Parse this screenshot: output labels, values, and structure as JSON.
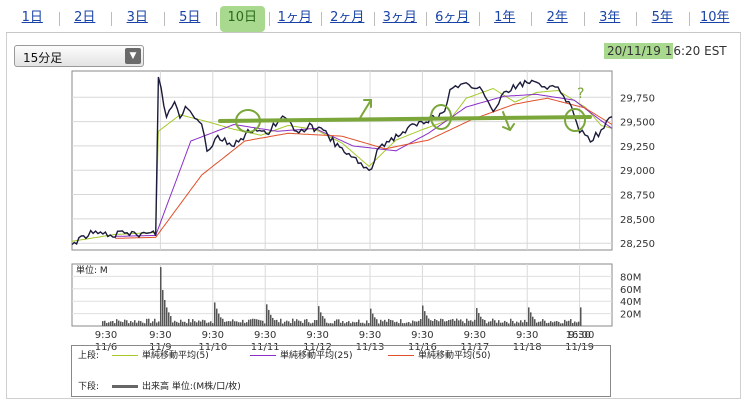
{
  "tabs": [
    {
      "label": "1日",
      "active": false
    },
    {
      "label": "2日",
      "active": false
    },
    {
      "label": "3日",
      "active": false
    },
    {
      "label": "5日",
      "active": false
    },
    {
      "label": "10日",
      "active": true
    },
    {
      "label": "1ヶ月",
      "active": false
    },
    {
      "label": "2ヶ月",
      "active": false
    },
    {
      "label": "3ヶ月",
      "active": false
    },
    {
      "label": "6ヶ月",
      "active": false
    },
    {
      "label": "1年",
      "active": false
    },
    {
      "label": "2年",
      "active": false
    },
    {
      "label": "3年",
      "active": false
    },
    {
      "label": "5年",
      "active": false
    },
    {
      "label": "10年",
      "active": false
    }
  ],
  "interval_select": {
    "value": "15分足"
  },
  "timestamp": {
    "highlighted": "20/11/19 1",
    "rest": "6:20 EST"
  },
  "colors": {
    "price": "#1a1a3a",
    "ma5": "#a6c92a",
    "ma25": "#8b2fc9",
    "ma50": "#e0502a",
    "volume": "#555555",
    "annotation": "#7aa63a",
    "tab_active_bg": "#a9d98e"
  },
  "chart_data": [
    {
      "type": "line",
      "title": "",
      "x": [
        "11/6",
        "11/9",
        "11/10",
        "11/11",
        "11/12",
        "11/13",
        "11/16",
        "11/17",
        "11/18",
        "11/19"
      ],
      "x_ticks": [
        {
          "time": "9:30",
          "date": "11/6"
        },
        {
          "time": "9:30",
          "date": "11/9"
        },
        {
          "time": "9:30",
          "date": "11/10"
        },
        {
          "time": "9:30",
          "date": "11/11"
        },
        {
          "time": "9:30",
          "date": "11/12"
        },
        {
          "time": "9:30",
          "date": "11/13"
        },
        {
          "time": "9:30",
          "date": "11/16"
        },
        {
          "time": "9:30",
          "date": "11/17"
        },
        {
          "time": "9:30",
          "date": "11/18"
        },
        {
          "time": "9:30",
          "date": "11/19"
        },
        {
          "time": "16:00",
          "date": ""
        }
      ],
      "y_ticks": [
        "29,750",
        "29,500",
        "29,250",
        "29,000",
        "28,750",
        "28,500",
        "28,250"
      ],
      "ylim": [
        28180,
        30020
      ],
      "series": [
        {
          "name": "単純移動平均(5)",
          "color": "#a6c92a",
          "anchors": [
            [
              0,
              28270
            ],
            [
              0.08,
              28340
            ],
            [
              0.155,
              28360
            ],
            [
              0.16,
              29400
            ],
            [
              0.2,
              29570
            ],
            [
              0.25,
              29500
            ],
            [
              0.3,
              29420
            ],
            [
              0.35,
              29360
            ],
            [
              0.4,
              29460
            ],
            [
              0.45,
              29420
            ],
            [
              0.5,
              29280
            ],
            [
              0.55,
              29040
            ],
            [
              0.6,
              29310
            ],
            [
              0.65,
              29420
            ],
            [
              0.7,
              29520
            ],
            [
              0.73,
              29740
            ],
            [
              0.78,
              29840
            ],
            [
              0.82,
              29700
            ],
            [
              0.86,
              29800
            ],
            [
              0.9,
              29820
            ],
            [
              0.95,
              29650
            ],
            [
              0.98,
              29460
            ],
            [
              1,
              29430
            ]
          ]
        },
        {
          "name": "単純移動平均(25)",
          "color": "#8b2fc9",
          "anchors": [
            [
              0.08,
              28320
            ],
            [
              0.155,
              28330
            ],
            [
              0.22,
              29300
            ],
            [
              0.3,
              29470
            ],
            [
              0.38,
              29400
            ],
            [
              0.45,
              29430
            ],
            [
              0.52,
              29250
            ],
            [
              0.6,
              29200
            ],
            [
              0.66,
              29380
            ],
            [
              0.73,
              29650
            ],
            [
              0.8,
              29760
            ],
            [
              0.86,
              29780
            ],
            [
              0.93,
              29720
            ],
            [
              0.97,
              29550
            ],
            [
              1,
              29430
            ]
          ]
        },
        {
          "name": "単純移動平均(50)",
          "color": "#e0502a",
          "anchors": [
            [
              0.08,
              28300
            ],
            [
              0.155,
              28310
            ],
            [
              0.24,
              28950
            ],
            [
              0.32,
              29300
            ],
            [
              0.4,
              29380
            ],
            [
              0.5,
              29350
            ],
            [
              0.58,
              29220
            ],
            [
              0.66,
              29310
            ],
            [
              0.74,
              29520
            ],
            [
              0.82,
              29680
            ],
            [
              0.88,
              29740
            ],
            [
              0.95,
              29640
            ],
            [
              1,
              29470
            ]
          ]
        },
        {
          "name": "price",
          "color": "#1a1a3a",
          "anchors": [
            [
              0,
              28240
            ],
            [
              0.03,
              28350
            ],
            [
              0.08,
              28340
            ],
            [
              0.155,
              28350
            ],
            [
              0.16,
              29970
            ],
            [
              0.175,
              29550
            ],
            [
              0.19,
              29700
            ],
            [
              0.2,
              29560
            ],
            [
              0.21,
              29650
            ],
            [
              0.24,
              29500
            ],
            [
              0.25,
              29200
            ],
            [
              0.27,
              29350
            ],
            [
              0.3,
              29250
            ],
            [
              0.33,
              29420
            ],
            [
              0.36,
              29380
            ],
            [
              0.39,
              29540
            ],
            [
              0.42,
              29400
            ],
            [
              0.44,
              29450
            ],
            [
              0.47,
              29380
            ],
            [
              0.5,
              29200
            ],
            [
              0.53,
              29100
            ],
            [
              0.55,
              28970
            ],
            [
              0.57,
              29250
            ],
            [
              0.6,
              29350
            ],
            [
              0.63,
              29450
            ],
            [
              0.66,
              29520
            ],
            [
              0.69,
              29580
            ],
            [
              0.7,
              29800
            ],
            [
              0.72,
              29900
            ],
            [
              0.74,
              29850
            ],
            [
              0.76,
              29820
            ],
            [
              0.78,
              29630
            ],
            [
              0.8,
              29800
            ],
            [
              0.83,
              29880
            ],
            [
              0.86,
              29920
            ],
            [
              0.88,
              29850
            ],
            [
              0.9,
              29820
            ],
            [
              0.92,
              29700
            ],
            [
              0.94,
              29420
            ],
            [
              0.96,
              29320
            ],
            [
              0.98,
              29400
            ],
            [
              1,
              29550
            ]
          ]
        }
      ]
    },
    {
      "type": "bar",
      "title": "",
      "unit_label": "単位: M",
      "y_ticks": [
        "80M",
        "60M",
        "40M",
        "20M"
      ],
      "ylim": [
        0,
        100
      ],
      "baseline_volume": 8,
      "day_spikes": [
        {
          "day_index": 1,
          "peak": 95,
          "decay": [
            95,
            58,
            42,
            30,
            22,
            16
          ]
        },
        {
          "day_index": 2,
          "peak": 38,
          "decay": [
            38,
            28,
            20,
            14
          ]
        },
        {
          "day_index": 3,
          "peak": 35,
          "decay": [
            35,
            26,
            18,
            13
          ]
        },
        {
          "day_index": 4,
          "peak": 32,
          "decay": [
            32,
            22,
            16,
            12
          ]
        },
        {
          "day_index": 5,
          "peak": 28,
          "decay": [
            28,
            20,
            14,
            11
          ]
        },
        {
          "day_index": 6,
          "peak": 33,
          "decay": [
            33,
            24,
            17,
            12
          ]
        },
        {
          "day_index": 7,
          "peak": 29,
          "decay": [
            29,
            21,
            15,
            11
          ]
        },
        {
          "day_index": 8,
          "peak": 30,
          "decay": [
            30,
            22,
            15,
            11
          ]
        },
        {
          "day_index": 9,
          "peak": 28,
          "decay": [
            28,
            20,
            14,
            11
          ]
        },
        {
          "day_index": 10,
          "peak": 30,
          "decay": [
            30,
            22,
            16,
            12
          ]
        }
      ]
    }
  ],
  "legend": {
    "upper_label": "上段:",
    "lower_label": "下段:",
    "ma5": "単純移動平均(5)",
    "ma25": "単純移動平均(25)",
    "ma50": "単純移動平均(50)",
    "volume": "出来高 単位:(M株/口/枚)"
  },
  "annotations": {
    "question_mark": "?"
  }
}
